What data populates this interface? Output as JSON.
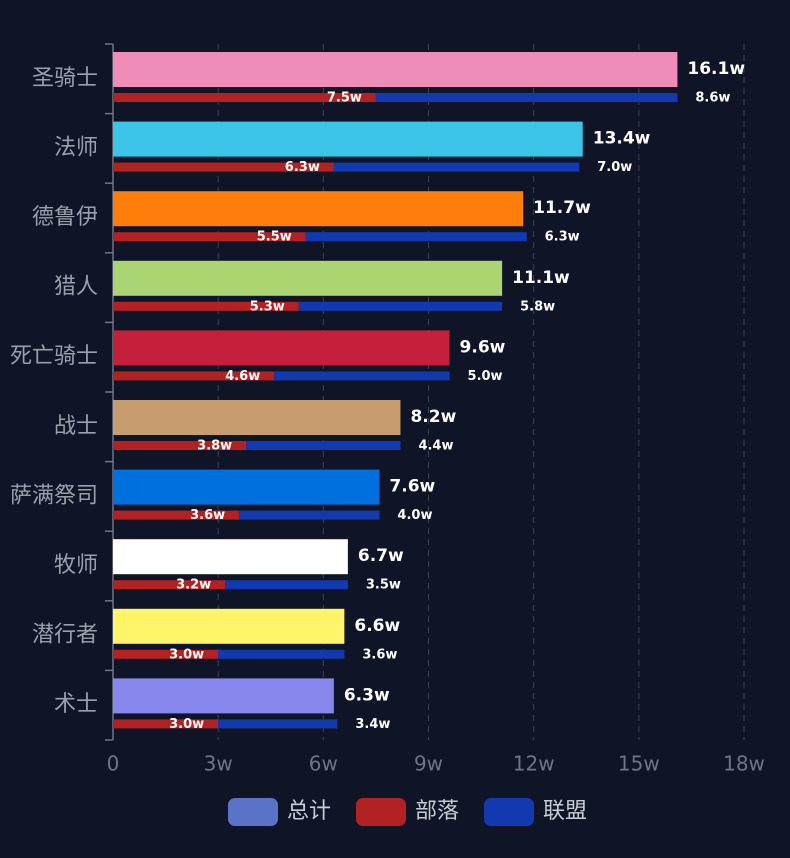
{
  "chart_data": {
    "type": "hbar",
    "categories": [
      "圣骑士",
      "法师",
      "德鲁伊",
      "猎人",
      "死亡骑士",
      "战士",
      "萨满祭司",
      "牧师",
      "潜行者",
      "术士"
    ],
    "series": [
      {
        "name": "总计",
        "color": "#5b72c9",
        "colors": [
          "#f08cb8",
          "#3bc4e8",
          "#ff7d0a",
          "#abd473",
          "#c41f3b",
          "#c79c6e",
          "#0070de",
          "#ffffff",
          "#fff569",
          "#8787ed"
        ],
        "values": [
          16.1,
          13.4,
          11.7,
          11.1,
          9.6,
          8.2,
          7.6,
          6.7,
          6.6,
          6.3
        ],
        "value_labels": [
          "16.1w",
          "13.4w",
          "11.7w",
          "11.1w",
          "9.6w",
          "8.2w",
          "7.6w",
          "6.7w",
          "6.6w",
          "6.3w"
        ]
      },
      {
        "name": "部落",
        "color": "#b22222",
        "values": [
          7.5,
          6.3,
          5.5,
          5.3,
          4.6,
          3.8,
          3.6,
          3.2,
          3.0,
          3.0
        ],
        "value_labels": [
          "7.5w",
          "6.3w",
          "5.5w",
          "5.3w",
          "4.6w",
          "3.8w",
          "3.6w",
          "3.2w",
          "3.0w",
          "3.0w"
        ]
      },
      {
        "name": "联盟",
        "color": "#1339b0",
        "values": [
          8.6,
          7.0,
          6.3,
          5.8,
          5.0,
          4.4,
          4.0,
          3.5,
          3.6,
          3.4
        ],
        "value_labels": [
          "8.6w",
          "7.0w",
          "6.3w",
          "5.8w",
          "5.0w",
          "4.4w",
          "4.0w",
          "3.5w",
          "3.6w",
          "3.4w"
        ]
      }
    ],
    "xlim": [
      0,
      18
    ],
    "xticks": [
      0,
      {
        "value": 3,
        "label": "3w"
      },
      {
        "value": 6,
        "label": "6w"
      },
      {
        "value": 9,
        "label": "9w"
      },
      {
        "value": 12,
        "label": "12w"
      },
      {
        "value": 15,
        "label": "15w"
      },
      {
        "value": 18,
        "label": "18w"
      }
    ],
    "grid": true
  }
}
